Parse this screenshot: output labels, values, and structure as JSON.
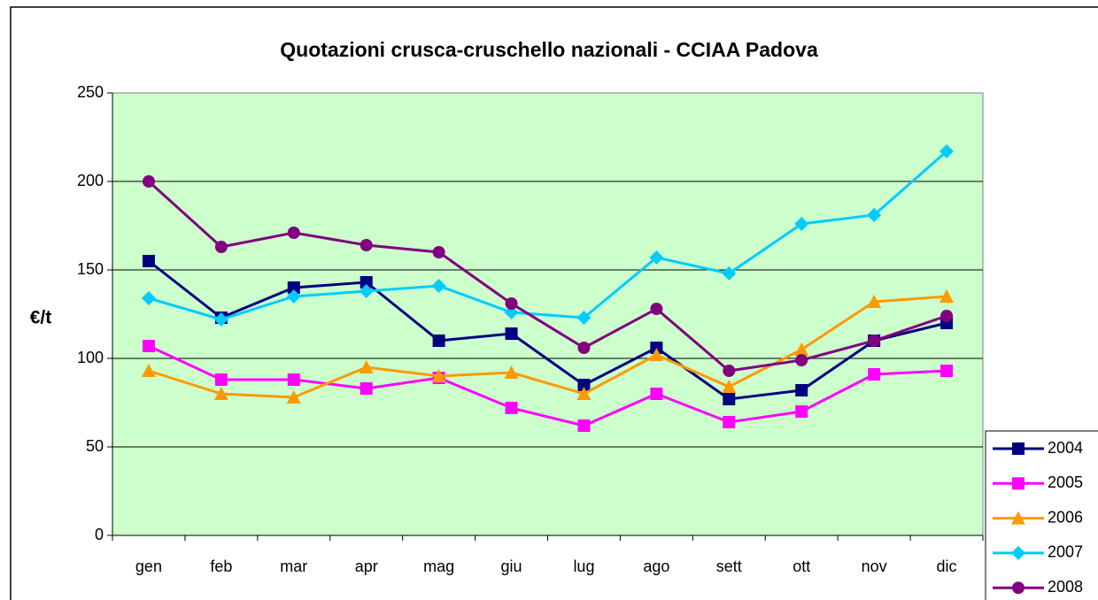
{
  "chart_data": {
    "type": "line",
    "title": "Quotazioni crusca-cruschello nazionali - CCIAA Padova",
    "y_label": "€/t",
    "categories": [
      "gen",
      "feb",
      "mar",
      "apr",
      "mag",
      "giu",
      "lug",
      "ago",
      "sett",
      "ott",
      "nov",
      "dic"
    ],
    "series": [
      {
        "name": "2004",
        "color": "#000080",
        "marker": "square",
        "values": [
          155,
          123,
          140,
          143,
          110,
          114,
          85,
          106,
          77,
          82,
          110,
          120
        ]
      },
      {
        "name": "2005",
        "color": "#ff00ff",
        "marker": "square",
        "values": [
          107,
          88,
          88,
          83,
          89,
          72,
          62,
          80,
          64,
          70,
          91,
          93
        ]
      },
      {
        "name": "2006",
        "color": "#ff9900",
        "marker": "triangle",
        "values": [
          93,
          80,
          78,
          95,
          90,
          92,
          80,
          102,
          84,
          105,
          132,
          135
        ]
      },
      {
        "name": "2007",
        "color": "#00ccff",
        "marker": "diamond",
        "values": [
          134,
          122,
          135,
          138,
          141,
          126,
          123,
          157,
          148,
          176,
          181,
          217
        ]
      },
      {
        "name": "2008",
        "color": "#800080",
        "marker": "circle",
        "values": [
          200,
          163,
          171,
          164,
          160,
          131,
          106,
          128,
          93,
          99,
          110,
          124
        ]
      }
    ],
    "ylim": [
      0,
      250
    ],
    "yticks": [
      0,
      50,
      100,
      150,
      200,
      250
    ],
    "grid": true,
    "plot_background": "#ccffcc"
  }
}
